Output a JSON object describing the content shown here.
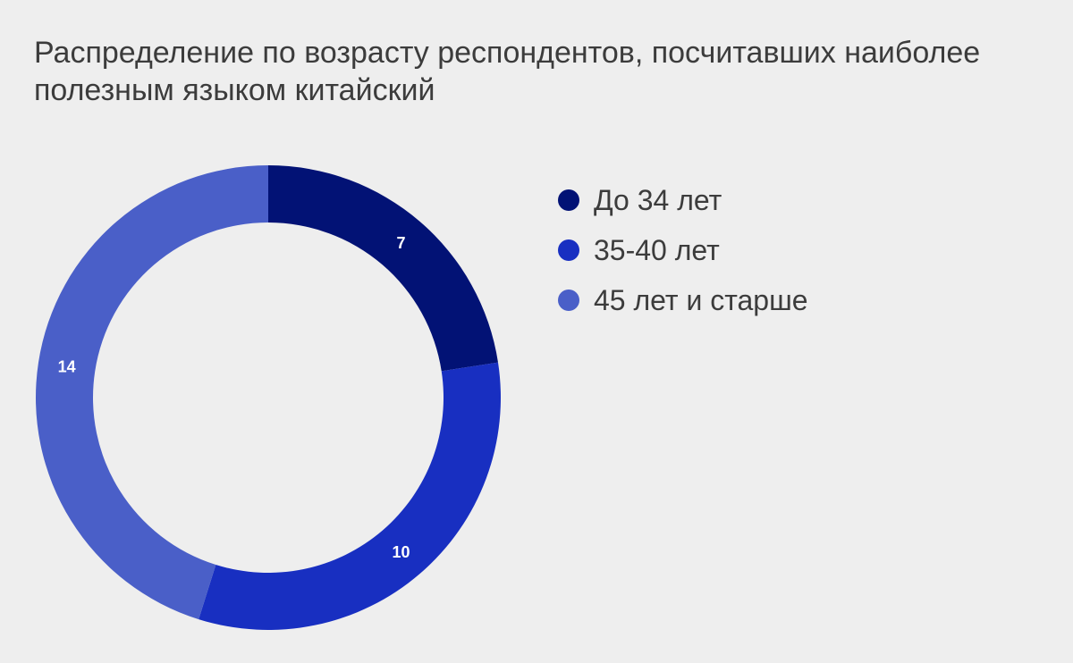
{
  "chart_data": {
    "type": "pie",
    "title": "Распределение по возрасту респондентов, посчитавших наиболее полезным языком китайский",
    "categories": [
      "До 34 лет",
      "35-40 лет",
      "45 лет и старше"
    ],
    "values": [
      7,
      10,
      14
    ],
    "colors": [
      "#021275",
      "#182fc1",
      "#4a5fc8"
    ],
    "donut": true,
    "data_labels": true,
    "legend_position": "right"
  }
}
